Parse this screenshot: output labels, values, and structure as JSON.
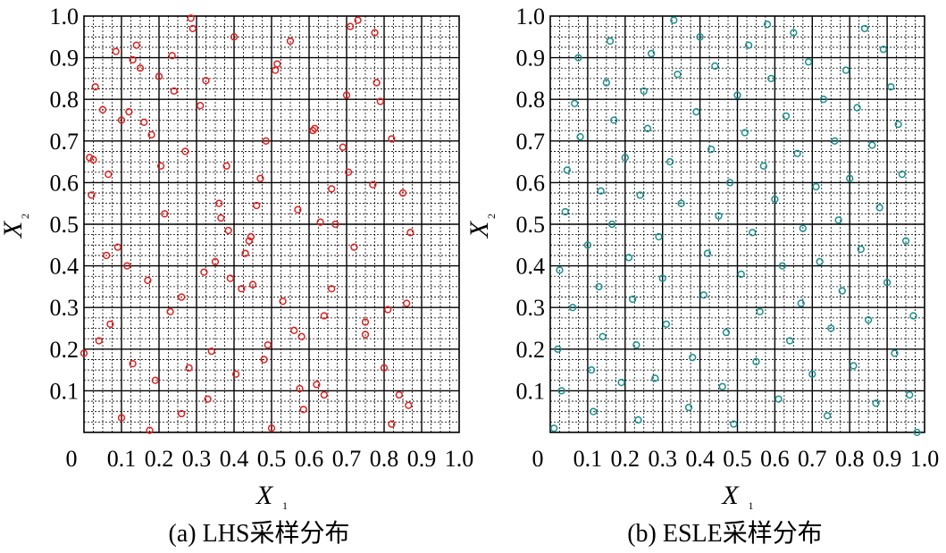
{
  "colors": {
    "lhs": "#e02020",
    "esle": "#1a8f8f",
    "grid": "#000000"
  },
  "chart_data": [
    {
      "type": "scatter",
      "caption": "(a)  LHS采样分布",
      "xlabel": "X",
      "xlabel_sub": "1",
      "ylabel": "X",
      "ylabel_sub": "2",
      "xlim": [
        0,
        1
      ],
      "ylim": [
        0,
        1
      ],
      "xticks": [
        "0",
        "0.1",
        "0.2",
        "0.3",
        "0.4",
        "0.5",
        "0.6",
        "0.7",
        "0.8",
        "0.9",
        "1.0"
      ],
      "yticks": [
        "0.1",
        "0.2",
        "0.3",
        "0.4",
        "0.5",
        "0.6",
        "0.7",
        "0.8",
        "0.9",
        "1.0"
      ],
      "grid": true,
      "series": [
        {
          "color": "#e02020",
          "points": [
            [
              0.0,
              0.19
            ],
            [
              0.015,
              0.66
            ],
            [
              0.02,
              0.57
            ],
            [
              0.025,
              0.655
            ],
            [
              0.03,
              0.83
            ],
            [
              0.04,
              0.22
            ],
            [
              0.05,
              0.775
            ],
            [
              0.06,
              0.425
            ],
            [
              0.065,
              0.62
            ],
            [
              0.07,
              0.26
            ],
            [
              0.085,
              0.915
            ],
            [
              0.09,
              0.445
            ],
            [
              0.1,
              0.035
            ],
            [
              0.1,
              0.75
            ],
            [
              0.115,
              0.4
            ],
            [
              0.12,
              0.77
            ],
            [
              0.13,
              0.165
            ],
            [
              0.13,
              0.895
            ],
            [
              0.14,
              0.93
            ],
            [
              0.15,
              0.875
            ],
            [
              0.16,
              0.745
            ],
            [
              0.17,
              0.365
            ],
            [
              0.175,
              0.005
            ],
            [
              0.18,
              0.715
            ],
            [
              0.19,
              0.125
            ],
            [
              0.2,
              0.855
            ],
            [
              0.205,
              0.64
            ],
            [
              0.215,
              0.525
            ],
            [
              0.23,
              0.29
            ],
            [
              0.235,
              0.905
            ],
            [
              0.24,
              0.82
            ],
            [
              0.26,
              0.045
            ],
            [
              0.26,
              0.325
            ],
            [
              0.27,
              0.675
            ],
            [
              0.28,
              0.155
            ],
            [
              0.285,
              0.995
            ],
            [
              0.29,
              0.97
            ],
            [
              0.31,
              0.785
            ],
            [
              0.32,
              0.385
            ],
            [
              0.325,
              0.845
            ],
            [
              0.33,
              0.08
            ],
            [
              0.34,
              0.195
            ],
            [
              0.35,
              0.41
            ],
            [
              0.36,
              0.55
            ],
            [
              0.365,
              0.515
            ],
            [
              0.38,
              0.64
            ],
            [
              0.385,
              0.485
            ],
            [
              0.39,
              0.37
            ],
            [
              0.4,
              0.95
            ],
            [
              0.405,
              0.14
            ],
            [
              0.42,
              0.345
            ],
            [
              0.43,
              0.43
            ],
            [
              0.44,
              0.46
            ],
            [
              0.445,
              0.47
            ],
            [
              0.45,
              0.355
            ],
            [
              0.46,
              0.545
            ],
            [
              0.47,
              0.61
            ],
            [
              0.48,
              0.175
            ],
            [
              0.485,
              0.7
            ],
            [
              0.49,
              0.21
            ],
            [
              0.5,
              0.01
            ],
            [
              0.51,
              0.87
            ],
            [
              0.515,
              0.885
            ],
            [
              0.53,
              0.315
            ],
            [
              0.55,
              0.94
            ],
            [
              0.56,
              0.245
            ],
            [
              0.57,
              0.535
            ],
            [
              0.575,
              0.105
            ],
            [
              0.58,
              0.23
            ],
            [
              0.585,
              0.055
            ],
            [
              0.61,
              0.725
            ],
            [
              0.615,
              0.73
            ],
            [
              0.62,
              0.115
            ],
            [
              0.63,
              0.505
            ],
            [
              0.64,
              0.09
            ],
            [
              0.64,
              0.28
            ],
            [
              0.66,
              0.585
            ],
            [
              0.66,
              0.345
            ],
            [
              0.67,
              0.5
            ],
            [
              0.69,
              0.685
            ],
            [
              0.7,
              0.81
            ],
            [
              0.705,
              0.625
            ],
            [
              0.71,
              0.975
            ],
            [
              0.72,
              0.445
            ],
            [
              0.73,
              0.99
            ],
            [
              0.75,
              0.235
            ],
            [
              0.75,
              0.265
            ],
            [
              0.77,
              0.595
            ],
            [
              0.775,
              0.96
            ],
            [
              0.78,
              0.84
            ],
            [
              0.79,
              0.795
            ],
            [
              0.8,
              0.155
            ],
            [
              0.81,
              0.295
            ],
            [
              0.82,
              0.02
            ],
            [
              0.82,
              0.705
            ],
            [
              0.84,
              0.09
            ],
            [
              0.85,
              0.575
            ],
            [
              0.86,
              0.31
            ],
            [
              0.865,
              0.065
            ],
            [
              0.87,
              0.48
            ]
          ]
        }
      ]
    },
    {
      "type": "scatter",
      "caption": "(b)  ESLE采样分布",
      "xlabel": "X",
      "xlabel_sub": "1",
      "ylabel": "X",
      "ylabel_sub": "2",
      "xlim": [
        0,
        1
      ],
      "ylim": [
        0,
        1
      ],
      "xticks": [
        "0",
        "0.1",
        "0.2",
        "0.3",
        "0.4",
        "0.5",
        "0.6",
        "0.7",
        "0.8",
        "0.9",
        "1.0"
      ],
      "yticks": [
        "0.1",
        "0.2",
        "0.3",
        "0.4",
        "0.5",
        "0.6",
        "0.7",
        "0.8",
        "0.9",
        "1.0"
      ],
      "grid": true,
      "series": [
        {
          "color": "#1a8f8f",
          "points": [
            [
              0.01,
              0.01
            ],
            [
              0.02,
              0.2
            ],
            [
              0.025,
              0.39
            ],
            [
              0.03,
              0.1
            ],
            [
              0.04,
              0.53
            ],
            [
              0.045,
              0.63
            ],
            [
              0.06,
              0.3
            ],
            [
              0.065,
              0.79
            ],
            [
              0.075,
              0.9
            ],
            [
              0.08,
              0.71
            ],
            [
              0.1,
              0.45
            ],
            [
              0.11,
              0.15
            ],
            [
              0.115,
              0.05
            ],
            [
              0.13,
              0.35
            ],
            [
              0.135,
              0.58
            ],
            [
              0.14,
              0.23
            ],
            [
              0.15,
              0.84
            ],
            [
              0.16,
              0.94
            ],
            [
              0.165,
              0.5
            ],
            [
              0.17,
              0.75
            ],
            [
              0.19,
              0.12
            ],
            [
              0.2,
              0.66
            ],
            [
              0.21,
              0.42
            ],
            [
              0.22,
              0.32
            ],
            [
              0.23,
              0.21
            ],
            [
              0.235,
              0.03
            ],
            [
              0.24,
              0.57
            ],
            [
              0.25,
              0.82
            ],
            [
              0.26,
              0.73
            ],
            [
              0.27,
              0.91
            ],
            [
              0.28,
              0.13
            ],
            [
              0.29,
              0.47
            ],
            [
              0.3,
              0.37
            ],
            [
              0.31,
              0.26
            ],
            [
              0.32,
              0.65
            ],
            [
              0.33,
              0.99
            ],
            [
              0.34,
              0.86
            ],
            [
              0.35,
              0.55
            ],
            [
              0.37,
              0.06
            ],
            [
              0.38,
              0.18
            ],
            [
              0.39,
              0.77
            ],
            [
              0.4,
              0.95
            ],
            [
              0.41,
              0.33
            ],
            [
              0.42,
              0.43
            ],
            [
              0.43,
              0.68
            ],
            [
              0.44,
              0.88
            ],
            [
              0.45,
              0.52
            ],
            [
              0.46,
              0.11
            ],
            [
              0.47,
              0.24
            ],
            [
              0.48,
              0.6
            ],
            [
              0.49,
              0.02
            ],
            [
              0.5,
              0.81
            ],
            [
              0.51,
              0.38
            ],
            [
              0.52,
              0.72
            ],
            [
              0.53,
              0.93
            ],
            [
              0.54,
              0.48
            ],
            [
              0.55,
              0.17
            ],
            [
              0.56,
              0.29
            ],
            [
              0.57,
              0.64
            ],
            [
              0.58,
              0.98
            ],
            [
              0.59,
              0.85
            ],
            [
              0.6,
              0.56
            ],
            [
              0.61,
              0.08
            ],
            [
              0.62,
              0.4
            ],
            [
              0.63,
              0.76
            ],
            [
              0.64,
              0.22
            ],
            [
              0.65,
              0.96
            ],
            [
              0.66,
              0.67
            ],
            [
              0.67,
              0.31
            ],
            [
              0.675,
              0.49
            ],
            [
              0.69,
              0.89
            ],
            [
              0.7,
              0.14
            ],
            [
              0.71,
              0.59
            ],
            [
              0.72,
              0.41
            ],
            [
              0.73,
              0.8
            ],
            [
              0.74,
              0.04
            ],
            [
              0.75,
              0.25
            ],
            [
              0.76,
              0.7
            ],
            [
              0.77,
              0.51
            ],
            [
              0.78,
              0.34
            ],
            [
              0.79,
              0.87
            ],
            [
              0.8,
              0.61
            ],
            [
              0.81,
              0.16
            ],
            [
              0.82,
              0.78
            ],
            [
              0.83,
              0.44
            ],
            [
              0.84,
              0.97
            ],
            [
              0.85,
              0.27
            ],
            [
              0.86,
              0.69
            ],
            [
              0.87,
              0.07
            ],
            [
              0.88,
              0.54
            ],
            [
              0.89,
              0.92
            ],
            [
              0.9,
              0.36
            ],
            [
              0.91,
              0.83
            ],
            [
              0.92,
              0.19
            ],
            [
              0.93,
              0.74
            ],
            [
              0.94,
              0.62
            ],
            [
              0.95,
              0.46
            ],
            [
              0.96,
              0.09
            ],
            [
              0.97,
              0.28
            ],
            [
              0.98,
              0.0
            ]
          ]
        }
      ]
    }
  ]
}
